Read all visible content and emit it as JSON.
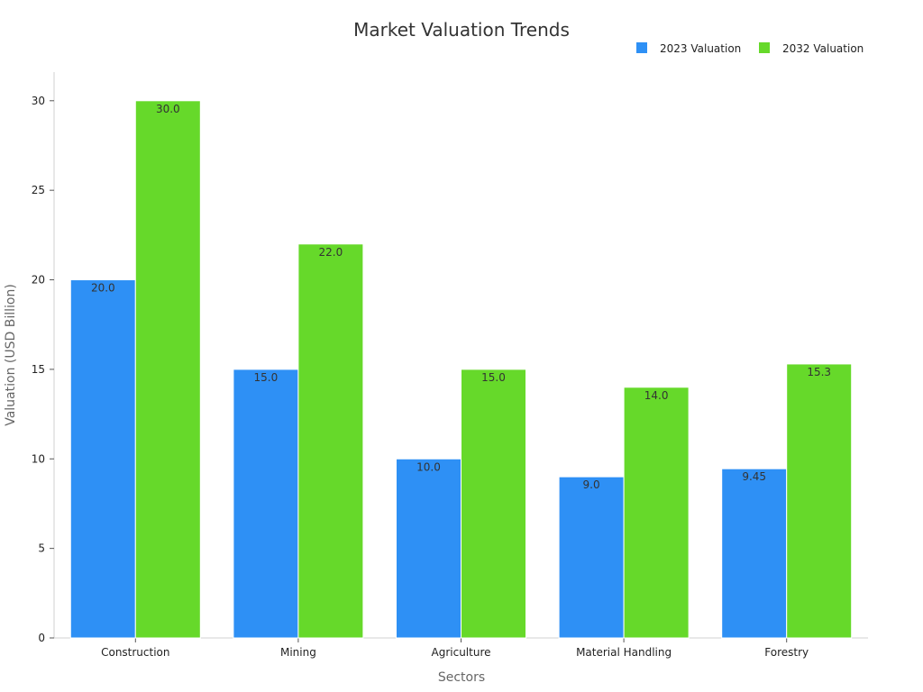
{
  "chart_data": {
    "type": "bar",
    "title": "Market Valuation Trends",
    "xlabel": "Sectors",
    "ylabel": "Valuation (USD Billion)",
    "categories": [
      "Construction",
      "Mining",
      "Agriculture",
      "Material Handling",
      "Forestry"
    ],
    "series": [
      {
        "name": "2023 Valuation",
        "color": "#2E90F5",
        "values": [
          20.0,
          15.0,
          10.0,
          9.0,
          9.45
        ],
        "labels": [
          "20.0",
          "15.0",
          "10.0",
          "9.0",
          "9.45"
        ]
      },
      {
        "name": "2032 Valuation",
        "color": "#66D92A",
        "values": [
          30.0,
          22.0,
          15.0,
          14.0,
          15.3
        ],
        "labels": [
          "30.0",
          "22.0",
          "15.0",
          "14.0",
          "15.3"
        ]
      }
    ],
    "ylim": [
      0,
      31.6
    ],
    "yticks": [
      0,
      5,
      10,
      15,
      20,
      25,
      30
    ],
    "ytick_labels": [
      "0",
      "5",
      "10",
      "15",
      "20",
      "25",
      "30"
    ],
    "grid": false,
    "legend_position": "top-right"
  }
}
